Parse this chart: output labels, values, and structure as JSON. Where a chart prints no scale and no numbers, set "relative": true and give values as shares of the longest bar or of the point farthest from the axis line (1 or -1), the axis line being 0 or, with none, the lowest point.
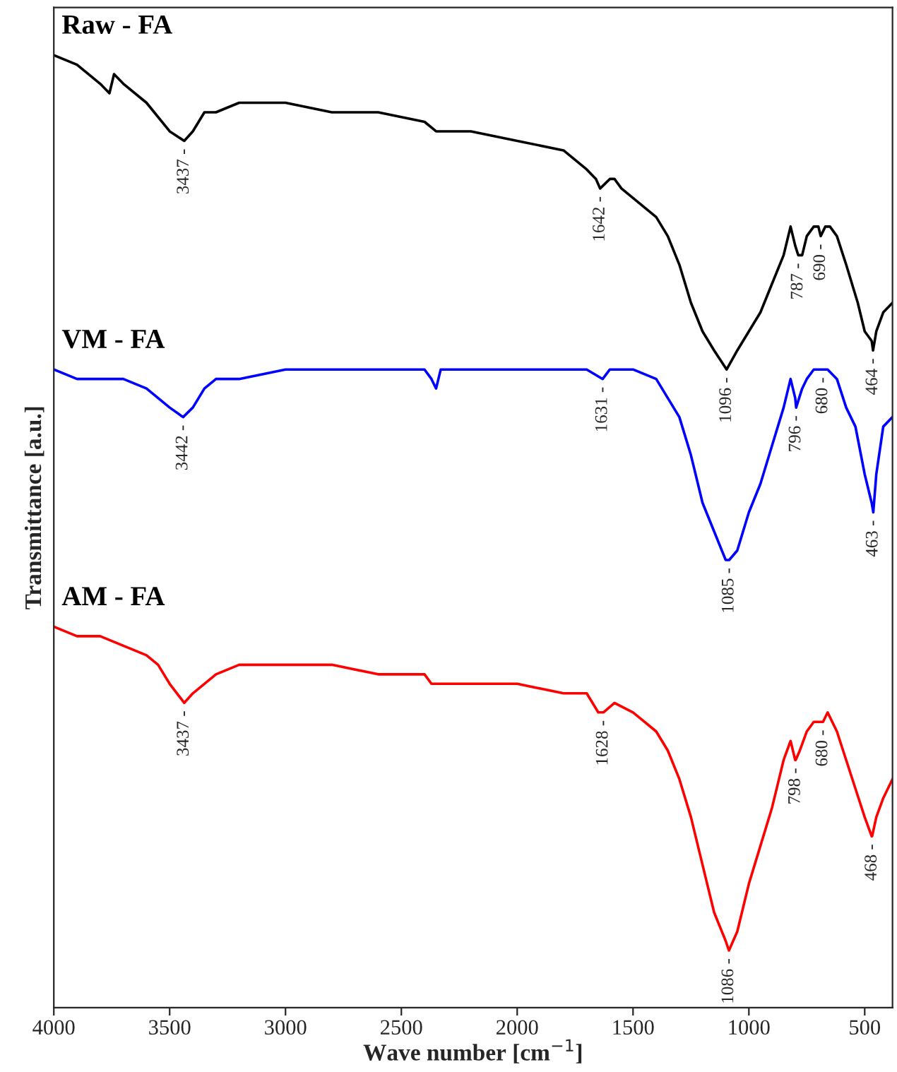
{
  "chart_data": {
    "type": "line",
    "relative": true,
    "xlabel": "Wave number [cm$^{−1}$]",
    "ylabel": "Transmittance [a.u.]",
    "xlim": [
      4000,
      380
    ],
    "xticks": [
      4000,
      3500,
      3000,
      2500,
      2000,
      1500,
      1000,
      500
    ],
    "grid": false,
    "legend": false,
    "marker": "none",
    "line_style": "solid",
    "series": [
      {
        "name": "Raw - FA",
        "color": "#000000",
        "x": [
          4000,
          3900,
          3800,
          3760,
          3740,
          3700,
          3600,
          3500,
          3437,
          3400,
          3350,
          3300,
          3200,
          3100,
          3000,
          2800,
          2600,
          2400,
          2350,
          2330,
          2300,
          2200,
          2000,
          1800,
          1700,
          1660,
          1642,
          1600,
          1580,
          1550,
          1500,
          1450,
          1400,
          1350,
          1300,
          1250,
          1200,
          1150,
          1096,
          1050,
          1000,
          950,
          900,
          850,
          820,
          800,
          787,
          770,
          750,
          720,
          700,
          690,
          670,
          650,
          620,
          580,
          530,
          500,
          470,
          464,
          450,
          420,
          380
        ],
        "values": [
          1.0,
          0.99,
          0.97,
          0.96,
          0.98,
          0.97,
          0.95,
          0.92,
          0.91,
          0.92,
          0.94,
          0.94,
          0.95,
          0.95,
          0.95,
          0.94,
          0.94,
          0.93,
          0.92,
          0.92,
          0.92,
          0.92,
          0.91,
          0.9,
          0.88,
          0.87,
          0.86,
          0.87,
          0.87,
          0.86,
          0.85,
          0.84,
          0.83,
          0.81,
          0.78,
          0.74,
          0.71,
          0.69,
          0.67,
          0.69,
          0.71,
          0.73,
          0.76,
          0.79,
          0.82,
          0.8,
          0.79,
          0.79,
          0.81,
          0.82,
          0.82,
          0.81,
          0.82,
          0.82,
          0.81,
          0.78,
          0.74,
          0.71,
          0.7,
          0.69,
          0.71,
          0.73,
          0.74
        ]
      },
      {
        "name": "VM - FA",
        "color": "#0000ff",
        "x": [
          4000,
          3900,
          3800,
          3700,
          3600,
          3500,
          3442,
          3400,
          3350,
          3300,
          3200,
          3000,
          2800,
          2600,
          2400,
          2370,
          2350,
          2330,
          2300,
          2000,
          1800,
          1700,
          1631,
          1600,
          1500,
          1400,
          1350,
          1300,
          1250,
          1200,
          1150,
          1100,
          1085,
          1050,
          1000,
          950,
          900,
          850,
          820,
          800,
          796,
          770,
          750,
          720,
          690,
          680,
          660,
          620,
          580,
          540,
          500,
          470,
          463,
          450,
          420,
          380
        ],
        "values": [
          0.67,
          0.66,
          0.66,
          0.66,
          0.65,
          0.63,
          0.62,
          0.63,
          0.65,
          0.66,
          0.66,
          0.67,
          0.67,
          0.67,
          0.67,
          0.66,
          0.65,
          0.67,
          0.67,
          0.67,
          0.67,
          0.67,
          0.66,
          0.67,
          0.67,
          0.66,
          0.64,
          0.62,
          0.58,
          0.53,
          0.5,
          0.47,
          0.47,
          0.48,
          0.52,
          0.55,
          0.59,
          0.63,
          0.66,
          0.64,
          0.63,
          0.65,
          0.66,
          0.67,
          0.67,
          0.67,
          0.67,
          0.66,
          0.63,
          0.61,
          0.56,
          0.53,
          0.52,
          0.56,
          0.61,
          0.62
        ]
      },
      {
        "name": "AM - FA",
        "color": "#ff0000",
        "x": [
          4000,
          3900,
          3800,
          3700,
          3600,
          3550,
          3500,
          3437,
          3400,
          3350,
          3300,
          3200,
          3000,
          2800,
          2600,
          2400,
          2370,
          2300,
          2000,
          1800,
          1700,
          1650,
          1628,
          1580,
          1500,
          1400,
          1350,
          1300,
          1250,
          1200,
          1150,
          1100,
          1086,
          1050,
          1000,
          950,
          900,
          850,
          820,
          800,
          798,
          780,
          750,
          720,
          680,
          660,
          620,
          580,
          540,
          500,
          470,
          468,
          450,
          420,
          380
        ],
        "values": [
          0.4,
          0.39,
          0.39,
          0.38,
          0.37,
          0.36,
          0.34,
          0.32,
          0.33,
          0.34,
          0.35,
          0.36,
          0.36,
          0.36,
          0.35,
          0.35,
          0.34,
          0.34,
          0.34,
          0.33,
          0.33,
          0.31,
          0.31,
          0.32,
          0.31,
          0.29,
          0.27,
          0.24,
          0.2,
          0.15,
          0.1,
          0.07,
          0.06,
          0.08,
          0.13,
          0.17,
          0.21,
          0.26,
          0.28,
          0.26,
          0.26,
          0.27,
          0.29,
          0.3,
          0.3,
          0.31,
          0.29,
          0.26,
          0.23,
          0.2,
          0.18,
          0.18,
          0.2,
          0.22,
          0.24
        ]
      }
    ],
    "annotations": [
      {
        "text": "3437 -",
        "x": 3437,
        "y": 0.91
      },
      {
        "text": "1642 -",
        "x": 1642,
        "y": 0.86
      },
      {
        "text": "1096 -",
        "x": 1096,
        "y": 0.67
      },
      {
        "text": "787 -",
        "x": 787,
        "y": 0.79
      },
      {
        "text": "690 -",
        "x": 690,
        "y": 0.81
      },
      {
        "text": "464 -",
        "x": 464,
        "y": 0.69
      },
      {
        "text": "3442 -",
        "x": 3442,
        "y": 0.62
      },
      {
        "text": "1631 -",
        "x": 1631,
        "y": 0.66
      },
      {
        "text": "1085 -",
        "x": 1085,
        "y": 0.47
      },
      {
        "text": "796 -",
        "x": 796,
        "y": 0.63
      },
      {
        "text": "680 -",
        "x": 680,
        "y": 0.67
      },
      {
        "text": "463 -",
        "x": 463,
        "y": 0.52
      },
      {
        "text": "3437 -",
        "x": 3437,
        "y": 0.32
      },
      {
        "text": "1628 -",
        "x": 1628,
        "y": 0.31
      },
      {
        "text": "1086 -",
        "x": 1086,
        "y": 0.06
      },
      {
        "text": "798 -",
        "x": 798,
        "y": 0.26
      },
      {
        "text": "680 -",
        "x": 680,
        "y": 0.3
      },
      {
        "text": "468 -",
        "x": 468,
        "y": 0.18
      }
    ]
  }
}
